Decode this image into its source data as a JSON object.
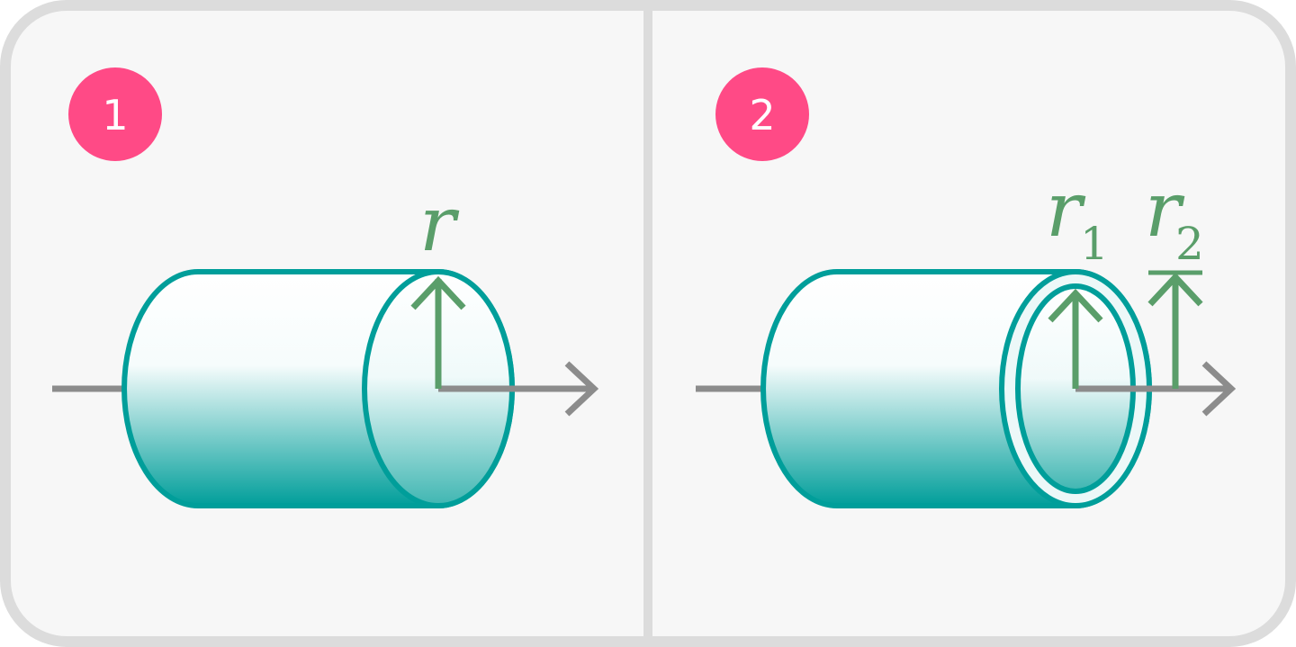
{
  "colors": {
    "panel_bg": "#f7f7f7",
    "border": "#dcdcdc",
    "badge": "#ff4a86",
    "cylinder_stroke": "#009e9a",
    "cylinder_fill_bottom": "#009e9a",
    "radius_arrow": "#5a9e6a",
    "axis": "#8c8c8c"
  },
  "panels": [
    {
      "badge": "1",
      "radius_labels": [
        {
          "symbol": "r",
          "subscript": ""
        }
      ]
    },
    {
      "badge": "2",
      "radius_labels": [
        {
          "symbol": "r",
          "subscript": "1"
        },
        {
          "symbol": "r",
          "subscript": "2"
        }
      ]
    }
  ],
  "icons": {
    "axis": "arrow-right-icon",
    "radius": "arrow-up-icon"
  }
}
